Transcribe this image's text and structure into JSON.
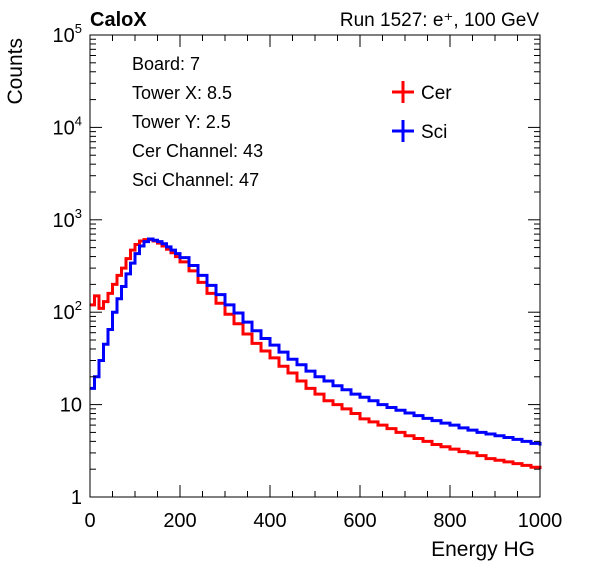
{
  "chart_data": {
    "type": "line",
    "step": true,
    "header_left": "CaloX",
    "header_right": "Run 1527: e⁺, 100 GeV",
    "xlabel": "Energy HG",
    "ylabel": "Counts",
    "xlim": [
      0,
      1000
    ],
    "ylim": [
      1,
      100000
    ],
    "log_y": true,
    "grid": false,
    "x_ticks": [
      0,
      200,
      400,
      600,
      800,
      1000
    ],
    "y_ticks": [
      {
        "value": 1,
        "base": "1",
        "exp": ""
      },
      {
        "value": 10,
        "base": "10",
        "exp": ""
      },
      {
        "value": 100,
        "base": "10",
        "exp": "2"
      },
      {
        "value": 1000,
        "base": "10",
        "exp": "3"
      },
      {
        "value": 10000,
        "base": "10",
        "exp": "4"
      },
      {
        "value": 100000,
        "base": "10",
        "exp": "5"
      }
    ],
    "info_lines": [
      "Board: 7",
      "Tower X: 8.5",
      "Tower Y: 2.5",
      "Cer Channel: 43",
      "Sci Channel: 47"
    ],
    "legend_placement": "top-right",
    "series": [
      {
        "name": "Cer",
        "color": "#ff0000",
        "x": [
          0,
          10,
          20,
          30,
          40,
          50,
          60,
          70,
          80,
          90,
          100,
          110,
          120,
          130,
          140,
          150,
          160,
          170,
          180,
          190,
          200,
          220,
          240,
          260,
          280,
          300,
          320,
          340,
          360,
          380,
          400,
          420,
          440,
          460,
          480,
          500,
          520,
          540,
          560,
          580,
          600,
          620,
          640,
          660,
          680,
          700,
          720,
          740,
          760,
          780,
          800,
          820,
          840,
          860,
          880,
          900,
          920,
          940,
          960,
          980,
          1000
        ],
        "values": [
          120,
          150,
          110,
          130,
          160,
          200,
          250,
          300,
          380,
          470,
          540,
          590,
          610,
          610,
          590,
          560,
          520,
          480,
          440,
          400,
          350,
          280,
          210,
          160,
          125,
          95,
          75,
          58,
          46,
          38,
          32,
          26,
          22,
          18,
          15,
          13,
          11,
          10,
          9,
          8,
          7,
          6.5,
          6,
          5.5,
          5,
          4.6,
          4.3,
          4,
          3.7,
          3.5,
          3.3,
          3.1,
          3,
          2.8,
          2.6,
          2.5,
          2.4,
          2.3,
          2.2,
          2.1,
          2
        ]
      },
      {
        "name": "Sci",
        "color": "#0000ff",
        "x": [
          0,
          10,
          20,
          30,
          40,
          50,
          60,
          70,
          80,
          90,
          100,
          110,
          120,
          130,
          140,
          150,
          160,
          170,
          180,
          190,
          200,
          220,
          240,
          260,
          280,
          300,
          320,
          340,
          360,
          380,
          400,
          420,
          440,
          460,
          480,
          500,
          520,
          540,
          560,
          580,
          600,
          620,
          640,
          660,
          680,
          700,
          720,
          740,
          760,
          780,
          800,
          820,
          840,
          860,
          880,
          900,
          920,
          940,
          960,
          980,
          1000
        ],
        "values": [
          15,
          20,
          30,
          45,
          65,
          100,
          140,
          190,
          260,
          340,
          430,
          520,
          580,
          620,
          600,
          580,
          550,
          510,
          470,
          430,
          390,
          320,
          250,
          195,
          155,
          120,
          98,
          78,
          63,
          52,
          44,
          37,
          31,
          27,
          23,
          20,
          18,
          16,
          14.5,
          13,
          12,
          11,
          10,
          9.3,
          8.7,
          8.1,
          7.6,
          7.1,
          6.7,
          6.3,
          6,
          5.6,
          5.3,
          5,
          4.8,
          4.6,
          4.4,
          4.2,
          4,
          3.8,
          3.6
        ]
      }
    ]
  }
}
